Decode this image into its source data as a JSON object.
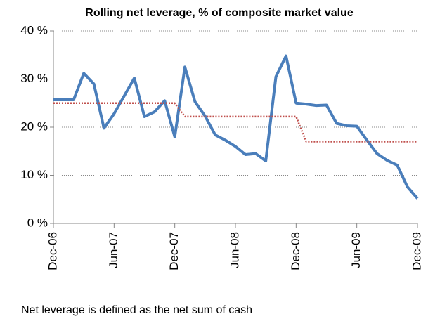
{
  "chart_data": {
    "type": "line",
    "title": "Rolling net leverage, % of composite market value",
    "categories": [
      "Dec-06",
      null,
      null,
      null,
      null,
      null,
      "Jun-07",
      null,
      null,
      null,
      null,
      null,
      "Dec-07",
      null,
      null,
      null,
      null,
      null,
      "Jun-08",
      null,
      null,
      null,
      null,
      null,
      "Dec-08",
      null,
      null,
      null,
      null,
      null,
      "Jun-09",
      null,
      null,
      null,
      null,
      null,
      "Dec-09"
    ],
    "series": [
      {
        "color": "#4a7ebb",
        "style": "solid",
        "values": [
          25.7,
          25.7,
          25.7,
          31.2,
          29,
          19.8,
          22.8,
          26.5,
          30.2,
          22.2,
          23.2,
          25.5,
          18,
          32.5,
          25.3,
          22.3,
          18.4,
          17.3,
          16,
          14.3,
          14.5,
          13,
          30.5,
          34.8,
          25,
          24.8,
          24.5,
          24.6,
          20.8,
          20.3,
          20.2,
          17.3,
          14.5,
          13.1,
          12.1,
          7.6,
          5.2
        ]
      },
      {
        "color": "#c0504d",
        "style": "dotted",
        "values": [
          25,
          25,
          25,
          25,
          25,
          25,
          25,
          25,
          25,
          25,
          25,
          25,
          25,
          22.2,
          22.2,
          22.2,
          22.2,
          22.2,
          22.2,
          22.2,
          22.2,
          22.2,
          22.2,
          22.2,
          22.2,
          17,
          17,
          17,
          17,
          17,
          17,
          17,
          17,
          17,
          17,
          17,
          17
        ]
      }
    ],
    "ylim": [
      0,
      40
    ],
    "yticks": [
      {
        "value": 0,
        "label": "0 %"
      },
      {
        "value": 10,
        "label": "10 %"
      },
      {
        "value": 20,
        "label": "20 %"
      },
      {
        "value": 30,
        "label": "30 %"
      },
      {
        "value": 40,
        "label": "40 %"
      }
    ],
    "grid": true
  },
  "footnote": "Net leverage is defined as the net sum of cash"
}
